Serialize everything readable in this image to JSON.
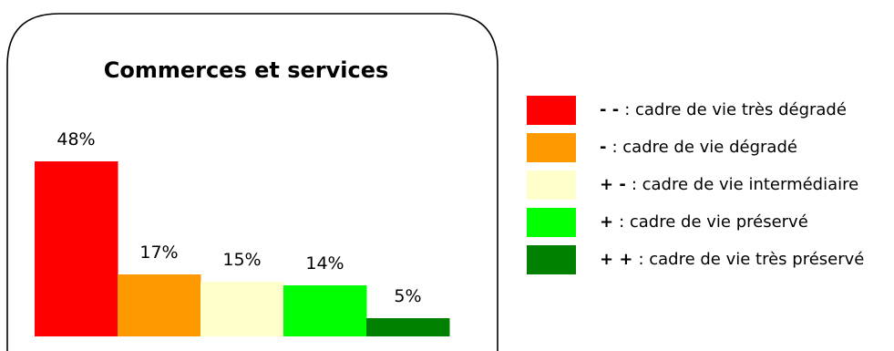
{
  "chart_data": {
    "type": "bar",
    "title": "Commerces et services",
    "xlabel": "",
    "ylabel": "",
    "ylim": [
      0,
      50
    ],
    "grid": false,
    "legend_position": "right",
    "unit": "%",
    "categories": [
      "- -",
      "-",
      "+ -",
      "+",
      "+ +"
    ],
    "values": [
      48,
      17,
      15,
      14,
      5
    ],
    "value_labels": [
      "48%",
      "17%",
      "15%",
      "14%",
      "5%"
    ],
    "colors": [
      "#ff0000",
      "#ff9900",
      "#ffffcc",
      "#00ff00",
      "#008000"
    ],
    "legend": [
      {
        "symbol": "- -",
        "text": ": cadre de vie très dégradé"
      },
      {
        "symbol": "-",
        "text": ": cadre de vie dégradé"
      },
      {
        "symbol": "+ -",
        "text": ": cadre de vie intermédiaire"
      },
      {
        "symbol": "+",
        "text": ": cadre de vie préservé"
      },
      {
        "symbol": "+ +",
        "text": ": cadre de vie très préservé"
      }
    ]
  }
}
